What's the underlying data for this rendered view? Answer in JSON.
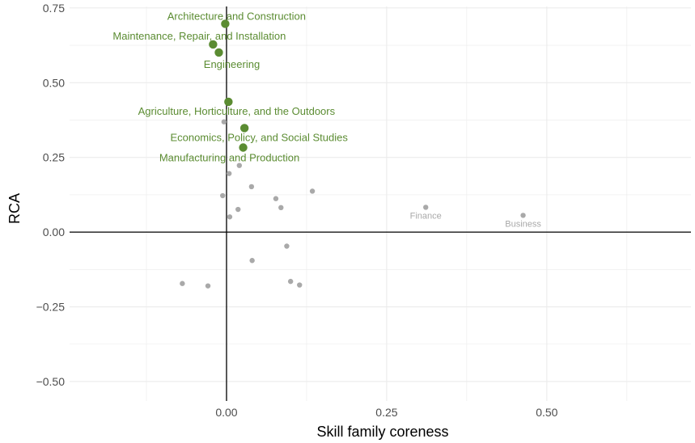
{
  "chart_data": {
    "type": "scatter",
    "title": "",
    "xlabel": "Skill family coreness",
    "ylabel": "RCA",
    "xlim": [
      -0.245,
      0.725
    ],
    "ylim": [
      -0.565,
      0.755
    ],
    "x_ticks": [
      0.0,
      0.25,
      0.5
    ],
    "x_tick_labels": [
      "0.00",
      "0.25",
      "0.50"
    ],
    "y_ticks": [
      -0.5,
      -0.25,
      0.0,
      0.25,
      0.5,
      0.75
    ],
    "y_tick_labels": [
      "−0.50",
      "−0.25",
      "0.00",
      "0.25",
      "0.50",
      "0.75"
    ],
    "grid": true,
    "colors": {
      "highlight": "#5b8c32",
      "other": "#a9a9a9",
      "zero_line": "#000000",
      "grid": "#ebebeb"
    },
    "highlighted_points": [
      {
        "label": "Architecture and Construction",
        "x": -0.002,
        "y": 0.697
      },
      {
        "label": "Maintenance, Repair, and Installation",
        "x": -0.021,
        "y": 0.628
      },
      {
        "label": "Engineering",
        "x": -0.012,
        "y": 0.601
      },
      {
        "label": "Agriculture, Horticulture, and the Outdoors",
        "x": 0.003,
        "y": 0.436
      },
      {
        "label": "Economics, Policy, and Social Studies",
        "x": 0.028,
        "y": 0.348
      },
      {
        "label": "Manufacturing and Production",
        "x": 0.026,
        "y": 0.283
      }
    ],
    "other_points": [
      {
        "label": "Finance",
        "x": 0.311,
        "y": 0.083
      },
      {
        "label": "Business",
        "x": 0.463,
        "y": 0.056
      },
      {
        "label": "",
        "x": -0.004,
        "y": 0.369
      },
      {
        "label": "",
        "x": 0.02,
        "y": 0.223
      },
      {
        "label": "",
        "x": 0.004,
        "y": 0.196
      },
      {
        "label": "",
        "x": 0.039,
        "y": 0.152
      },
      {
        "label": "",
        "x": 0.134,
        "y": 0.137
      },
      {
        "label": "",
        "x": -0.006,
        "y": 0.122
      },
      {
        "label": "",
        "x": 0.077,
        "y": 0.112
      },
      {
        "label": "",
        "x": 0.085,
        "y": 0.082
      },
      {
        "label": "",
        "x": 0.018,
        "y": 0.076
      },
      {
        "label": "",
        "x": 0.005,
        "y": 0.051
      },
      {
        "label": "",
        "x": 0.04,
        "y": -0.095
      },
      {
        "label": "",
        "x": 0.094,
        "y": -0.047
      },
      {
        "label": "",
        "x": 0.1,
        "y": -0.165
      },
      {
        "label": "",
        "x": 0.114,
        "y": -0.177
      },
      {
        "label": "",
        "x": -0.069,
        "y": -0.172
      },
      {
        "label": "",
        "x": -0.029,
        "y": -0.18
      }
    ]
  }
}
